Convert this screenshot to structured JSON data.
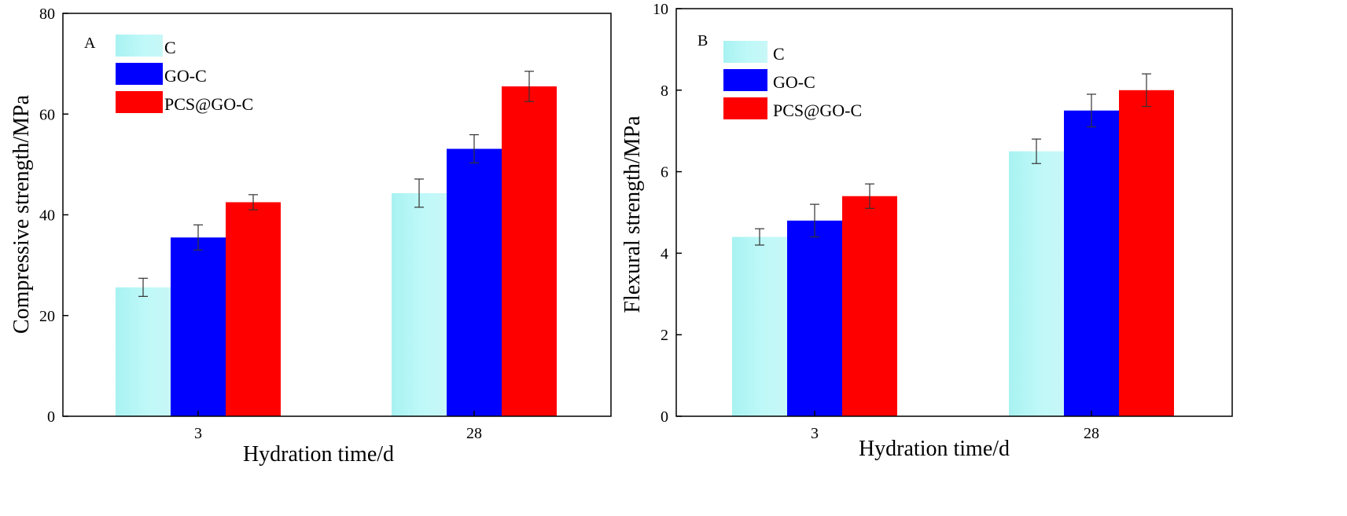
{
  "chart_data": [
    {
      "type": "bar",
      "panel_label": "A",
      "categories": [
        "3",
        "28"
      ],
      "series": [
        {
          "name": "C",
          "values": [
            25.6,
            44.3
          ],
          "errors": [
            1.8,
            2.8
          ],
          "color": "#b3f7f7"
        },
        {
          "name": "GO-C",
          "values": [
            35.5,
            53.1
          ],
          "errors": [
            2.5,
            2.8
          ],
          "color": "#0000ff"
        },
        {
          "name": "PCS@GO-C",
          "values": [
            42.5,
            65.5
          ],
          "errors": [
            1.5,
            3.0
          ],
          "color": "#ff0000"
        }
      ],
      "xlabel": "Hydration time/d",
      "ylabel": "Compressive strength/MPa",
      "ylim": [
        0,
        80
      ],
      "yticks": [
        "0",
        "20",
        "40",
        "60",
        "80"
      ],
      "legend_position": "top-left",
      "grid": false
    },
    {
      "type": "bar",
      "panel_label": "B",
      "categories": [
        "3",
        "28"
      ],
      "series": [
        {
          "name": "C",
          "values": [
            4.4,
            6.5
          ],
          "errors": [
            0.2,
            0.3
          ],
          "color": "#b3f7f7"
        },
        {
          "name": "GO-C",
          "values": [
            4.8,
            7.5
          ],
          "errors": [
            0.4,
            0.4
          ],
          "color": "#0000ff"
        },
        {
          "name": "PCS@GO-C",
          "values": [
            5.4,
            8.0
          ],
          "errors": [
            0.3,
            0.4
          ],
          "color": "#ff0000"
        }
      ],
      "xlabel": "Hydration time/d",
      "ylabel": "Flexural  strength/MPa",
      "ylim": [
        0,
        10
      ],
      "yticks": [
        "0",
        "2",
        "4",
        "6",
        "8",
        "10"
      ],
      "legend_position": "top-left",
      "grid": false
    }
  ]
}
